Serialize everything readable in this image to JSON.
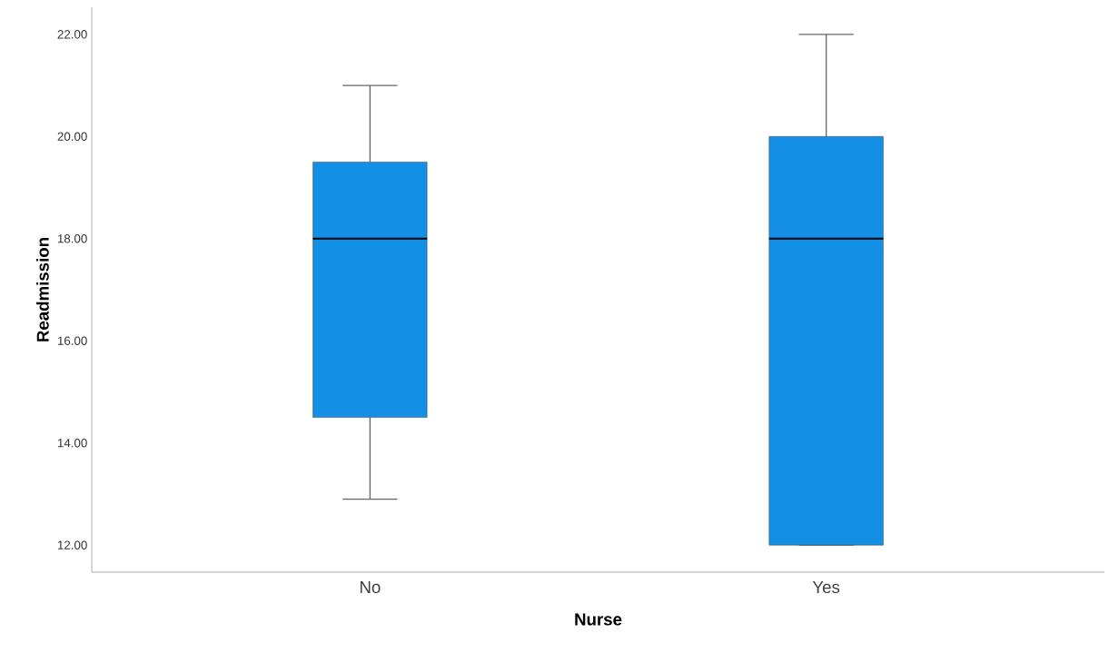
{
  "chart_data": {
    "type": "box",
    "xlabel": "Nurse",
    "ylabel": "Readmission",
    "categories": [
      "No",
      "Yes"
    ],
    "boxes": [
      {
        "low": 12.9,
        "q1": 14.5,
        "median": 18,
        "q3": 19.5,
        "high": 21
      },
      {
        "low": 12,
        "q1": 12,
        "median": 18,
        "q3": 20,
        "high": 22
      }
    ],
    "color": "#1390e6",
    "ylim": [
      11.47,
      22.53
    ],
    "yticks": [
      {
        "value": 12,
        "label": "12.00"
      },
      {
        "value": 14,
        "label": "14.00"
      },
      {
        "value": 16,
        "label": "16.00"
      },
      {
        "value": 18,
        "label": "18.00"
      },
      {
        "value": 20,
        "label": "20.00"
      },
      {
        "value": 22,
        "label": "22.00"
      }
    ]
  }
}
